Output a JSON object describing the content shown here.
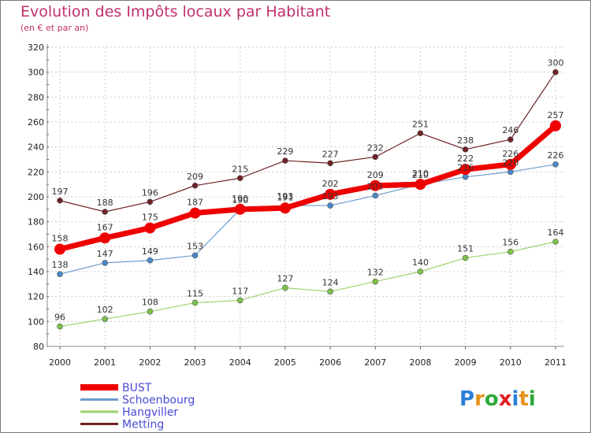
{
  "chart_data": {
    "type": "line",
    "title": "Evolution des Impôts locaux par Habitant",
    "subtitle": "(en € et par an)",
    "xlabel": "",
    "ylabel": "",
    "x": [
      "2000",
      "2001",
      "2002",
      "2003",
      "2004",
      "2005",
      "2006",
      "2007",
      "2008",
      "2009",
      "2010",
      "2011"
    ],
    "ylim": [
      80,
      320
    ],
    "yticks": [
      80,
      100,
      120,
      140,
      160,
      180,
      200,
      220,
      240,
      260,
      280,
      300,
      320
    ],
    "grid": true,
    "legend_position": "bottom-left",
    "series": [
      {
        "name": "Metting",
        "color": "#6e2226",
        "values": [
          197,
          188,
          196,
          209,
          215,
          229,
          227,
          232,
          251,
          238,
          246,
          300
        ]
      },
      {
        "name": "Hangviller",
        "color": "#9bd36a",
        "values": [
          96,
          102,
          108,
          115,
          117,
          127,
          124,
          132,
          140,
          151,
          156,
          164
        ]
      },
      {
        "name": "Schoenbourg",
        "color": "#6a9ccc",
        "values": [
          138,
          147,
          149,
          153,
          190,
          193,
          193,
          201,
          210,
          216,
          220,
          226
        ]
      },
      {
        "name": "BUST",
        "color": "#ee0000",
        "values": [
          158,
          167,
          175,
          187,
          190,
          191,
          202,
          209,
          210,
          222,
          226,
          257
        ]
      }
    ],
    "legend_order": [
      "BUST",
      "Schoenbourg",
      "Hangviller",
      "Metting"
    ]
  },
  "logo": {
    "letters": [
      "P",
      "r",
      "o",
      "x",
      "i",
      "t",
      "i"
    ],
    "colors": [
      "#2a7fd4",
      "#e8921a",
      "#2ea83a",
      "#e02020",
      "#2a7fd4",
      "#e8921a",
      "#2ea83a"
    ]
  }
}
